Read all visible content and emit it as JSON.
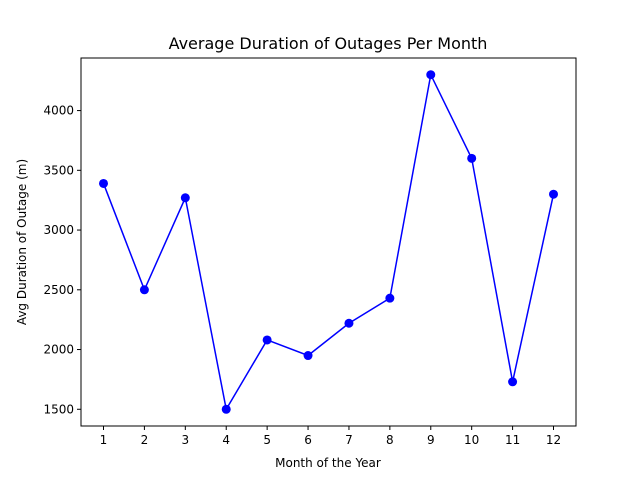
{
  "chart_data": {
    "type": "line",
    "title": "Average Duration of Outages Per Month",
    "xlabel": "Month of the Year",
    "ylabel": "Avg Duration of Outage (m)",
    "x": [
      1,
      2,
      3,
      4,
      5,
      6,
      7,
      8,
      9,
      10,
      11,
      12
    ],
    "x_tick_labels": [
      "1",
      "2",
      "3",
      "4",
      "5",
      "6",
      "7",
      "8",
      "9",
      "10",
      "11",
      "12"
    ],
    "y_ticks": [
      1500,
      2000,
      2500,
      3000,
      3500,
      4000
    ],
    "y_tick_labels": [
      "1500",
      "2000",
      "2500",
      "3000",
      "3500",
      "4000"
    ],
    "xlim": [
      0.45,
      12.55
    ],
    "ylim": [
      1360,
      4440
    ],
    "grid": false,
    "series": [
      {
        "color": "#0000ff",
        "marker": "circle",
        "values": [
          3390,
          2500,
          3270,
          1500,
          2080,
          1950,
          2220,
          2430,
          4300,
          3600,
          1730,
          3300
        ]
      }
    ]
  }
}
